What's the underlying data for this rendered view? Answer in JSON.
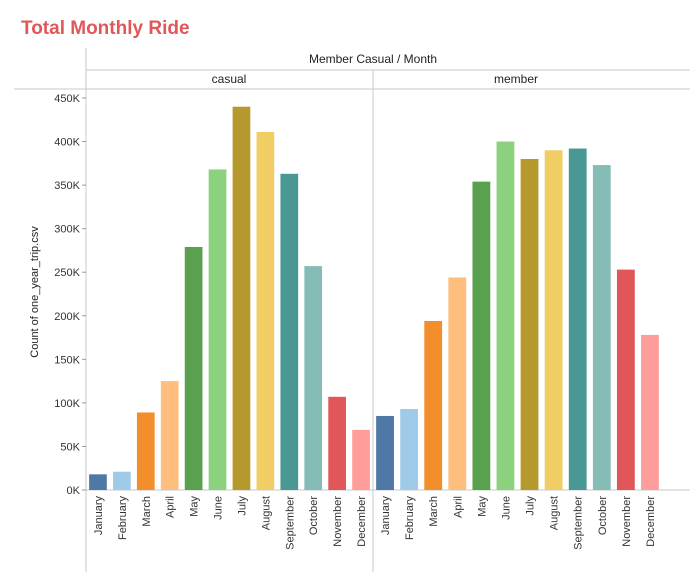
{
  "title": "Total Monthly Ride",
  "chart_data": {
    "type": "bar",
    "column_header": "Member Casual / Month",
    "ylabel": "Count of one_year_trip.csv",
    "ylim": [
      0,
      450000
    ],
    "yticks": [
      0,
      50000,
      100000,
      150000,
      200000,
      250000,
      300000,
      350000,
      400000,
      450000
    ],
    "ytick_labels": [
      "0K",
      "50K",
      "100K",
      "150K",
      "200K",
      "250K",
      "300K",
      "350K",
      "400K",
      "450K"
    ],
    "categories": [
      "January",
      "February",
      "March",
      "April",
      "May",
      "June",
      "July",
      "August",
      "September",
      "October",
      "November",
      "December"
    ],
    "colors": [
      "#4e79a7",
      "#a0cbe8",
      "#f28e2b",
      "#ffbe7d",
      "#59a14f",
      "#8cd17d",
      "#b6992d",
      "#f1ce63",
      "#499894",
      "#86bcb6",
      "#e15759",
      "#ff9d9a"
    ],
    "grid": false,
    "panels": [
      {
        "name": "casual",
        "values": [
          18000,
          21000,
          89000,
          125000,
          279000,
          368000,
          440000,
          411000,
          363000,
          257000,
          107000,
          69000
        ]
      },
      {
        "name": "member",
        "values": [
          85000,
          93000,
          194000,
          244000,
          354000,
          400000,
          380000,
          390000,
          392000,
          373000,
          253000,
          178000
        ]
      }
    ]
  }
}
